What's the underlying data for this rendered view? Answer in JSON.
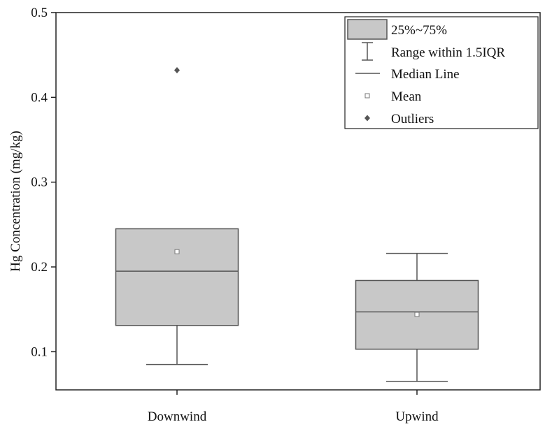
{
  "chart_data": {
    "type": "box",
    "title": "",
    "xlabel": "",
    "ylabel": "Hg Concentration (mg/kg)",
    "ylim": [
      0.055,
      0.5
    ],
    "yticks": [
      0.1,
      0.2,
      0.3,
      0.4,
      0.5
    ],
    "ytick_labels": [
      "0.1",
      "0.2",
      "0.3",
      "0.4",
      "0.5"
    ],
    "categories": [
      "Downwind",
      "Upwind"
    ],
    "boxes": [
      {
        "category": "Downwind",
        "whisker_low": 0.085,
        "q1": 0.131,
        "median": 0.195,
        "q3": 0.245,
        "whisker_high": 0.245,
        "mean": 0.218,
        "outliers": [
          0.432
        ]
      },
      {
        "category": "Upwind",
        "whisker_low": 0.065,
        "q1": 0.103,
        "median": 0.147,
        "q3": 0.184,
        "whisker_high": 0.216,
        "mean": 0.144,
        "outliers": []
      }
    ],
    "grid": false,
    "legend_position": "top-right",
    "legend": [
      {
        "key": "box",
        "label": "25%~75%"
      },
      {
        "key": "whisker",
        "label": "Range within 1.5IQR"
      },
      {
        "key": "median",
        "label": "Median Line"
      },
      {
        "key": "mean",
        "label": "Mean"
      },
      {
        "key": "outlier",
        "label": "Outliers"
      }
    ],
    "colors": {
      "box_fill": "#c8c8c8",
      "stroke": "#555555",
      "axis": "#222222"
    }
  }
}
